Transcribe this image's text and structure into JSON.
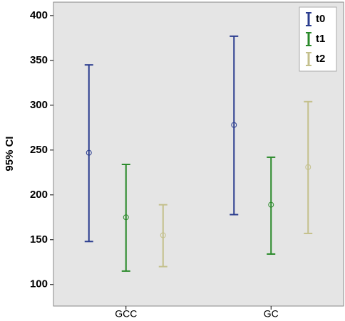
{
  "chart_data": {
    "type": "errorbar",
    "y_label": "95% CI",
    "categories": [
      "GCC",
      "GC"
    ],
    "series": [
      {
        "name": "t0",
        "color": "#2b3d8f",
        "values": [
          247,
          278
        ],
        "lower": [
          148,
          178
        ],
        "upper": [
          345,
          377
        ]
      },
      {
        "name": "t1",
        "color": "#2a8a2a",
        "values": [
          175,
          189
        ],
        "lower": [
          115,
          134
        ],
        "upper": [
          234,
          242
        ]
      },
      {
        "name": "t2",
        "color": "#c4c08c",
        "values": [
          155,
          231
        ],
        "lower": [
          120,
          157
        ],
        "upper": [
          189,
          304
        ]
      }
    ],
    "ylim": [
      76,
      415
    ],
    "yticks": [
      100,
      150,
      200,
      250,
      300,
      350,
      400
    ],
    "legend": "top-right"
  }
}
